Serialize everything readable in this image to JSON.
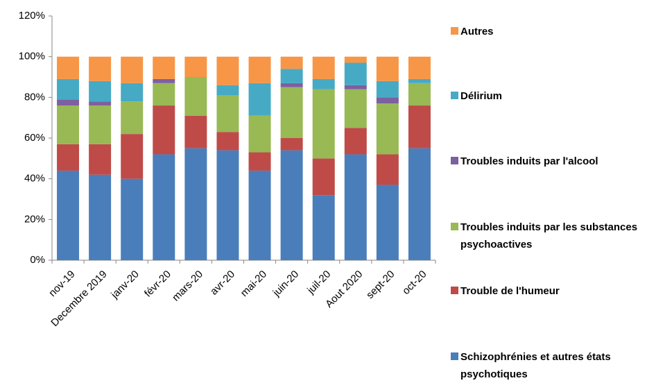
{
  "chart_data": {
    "type": "stacked-bar",
    "categories": [
      "nov-19",
      "Decembre 2019",
      "janv-20",
      "févr-20",
      "mars-20",
      "avr-20",
      "mai-20",
      "juin-20",
      "juil-20",
      "Aout 2020",
      "sept-20",
      "oct-20"
    ],
    "series": [
      {
        "name": "Schizophrénies et autres états psychotiques",
        "color": "#4a7ebb",
        "values": [
          44,
          42,
          40,
          52,
          55,
          54,
          44,
          54,
          32,
          52,
          37,
          55
        ]
      },
      {
        "name": "Trouble de l'humeur",
        "color": "#be4b48",
        "values": [
          13,
          15,
          22,
          24,
          16,
          9,
          9,
          6,
          18,
          13,
          15,
          21
        ]
      },
      {
        "name": "Troubles induits par les substances psychoactives",
        "color": "#98b954",
        "values": [
          19,
          19,
          16,
          11,
          19,
          18,
          18,
          25,
          34,
          19,
          25,
          11
        ]
      },
      {
        "name": "Troubles induits par l'alcool",
        "color": "#7d60a0",
        "values": [
          3,
          2,
          0,
          2,
          0,
          0,
          0,
          2,
          0,
          2,
          3,
          0
        ]
      },
      {
        "name": "Délirium",
        "color": "#46aac5",
        "values": [
          10,
          10,
          9,
          0,
          0,
          5,
          16,
          7,
          5,
          11,
          8,
          2
        ]
      },
      {
        "name": "Autres",
        "color": "#f79646",
        "values": [
          11,
          12,
          13,
          11,
          10,
          14,
          13,
          6,
          11,
          3,
          12,
          11
        ]
      }
    ],
    "ylim": [
      0,
      120
    ],
    "yticks": [
      {
        "value": 0,
        "label": "0%"
      },
      {
        "value": 20,
        "label": "20%"
      },
      {
        "value": 40,
        "label": "40%"
      },
      {
        "value": 60,
        "label": "60%"
      },
      {
        "value": 80,
        "label": "80%"
      },
      {
        "value": 100,
        "label": "100%"
      },
      {
        "value": 120,
        "label": "120%"
      }
    ]
  }
}
